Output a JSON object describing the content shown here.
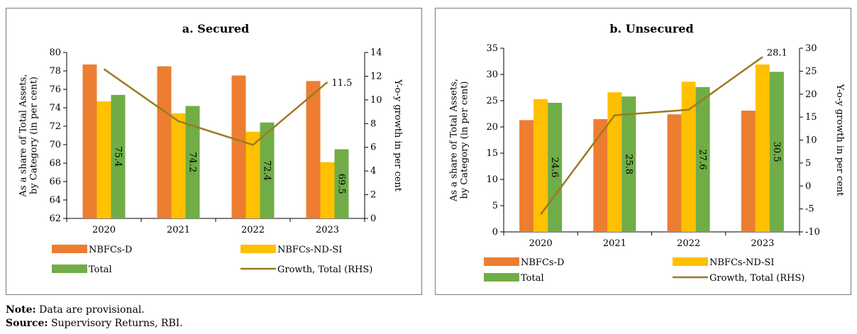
{
  "colors": {
    "nbfc_d": "#ED7D31",
    "nbfc_ndsi": "#FFC000",
    "total": "#70AD47",
    "growth": "#9C7A1F"
  },
  "chart_data": [
    {
      "type": "bar",
      "title": "a. Secured",
      "categories": [
        "2020",
        "2021",
        "2022",
        "2023"
      ],
      "ylabel": "As a share of Total Assets, by Category (in per cent)",
      "y2label": "Y-o-y growth in per cent",
      "ylim": [
        62,
        80
      ],
      "yticks": [
        62,
        64,
        66,
        68,
        70,
        72,
        74,
        76,
        78,
        80
      ],
      "y2lim": [
        0,
        14
      ],
      "y2ticks": [
        0,
        2,
        4,
        6,
        8,
        10,
        12,
        14
      ],
      "series": [
        {
          "name": "NBFCs-D",
          "values": [
            78.7,
            78.5,
            77.5,
            76.9
          ]
        },
        {
          "name": "NBFCs-ND-SI",
          "values": [
            74.7,
            73.4,
            71.4,
            68.1
          ]
        },
        {
          "name": "Total",
          "values": [
            75.4,
            74.2,
            72.4,
            69.5
          ],
          "data_labels": [
            "75.4",
            "74.2",
            "72.4",
            "69.5"
          ]
        }
      ],
      "line_series": {
        "name": "Growth, Total (RHS)",
        "axis": "right",
        "values": [
          12.6,
          8.2,
          6.2,
          11.5
        ],
        "end_label": "11.5"
      },
      "legend": [
        "NBFCs-D",
        "NBFCs-ND-SI",
        "Total",
        "Growth, Total (RHS)"
      ],
      "legend_placement": "bottom",
      "grid": false
    },
    {
      "type": "bar",
      "title": "b. Unsecured",
      "categories": [
        "2020",
        "2021",
        "2022",
        "2023"
      ],
      "ylabel": "As a share of Total Assets, by Category (in per cent)",
      "y2label": "Y-o-y growth in per cent",
      "ylim": [
        0,
        35
      ],
      "yticks": [
        0,
        5,
        10,
        15,
        20,
        25,
        30,
        35
      ],
      "y2lim": [
        -10,
        30
      ],
      "y2ticks": [
        -10,
        -5,
        0,
        5,
        10,
        15,
        20,
        25,
        30
      ],
      "series": [
        {
          "name": "NBFCs-D",
          "values": [
            21.3,
            21.5,
            22.4,
            23.1
          ]
        },
        {
          "name": "NBFCs-ND-SI",
          "values": [
            25.3,
            26.6,
            28.6,
            31.9
          ]
        },
        {
          "name": "Total",
          "values": [
            24.6,
            25.8,
            27.6,
            30.5
          ],
          "data_labels": [
            "24.6",
            "25.8",
            "27.6",
            "30.5"
          ]
        }
      ],
      "line_series": {
        "name": "Growth, Total (RHS)",
        "axis": "right",
        "values": [
          -6.2,
          15.4,
          16.6,
          28.1
        ],
        "end_label": "28.1"
      },
      "legend": [
        "NBFCs-D",
        "NBFCs-ND-SI",
        "Total",
        "Growth, Total (RHS)"
      ],
      "legend_placement": "bottom",
      "grid": false
    }
  ],
  "notes": {
    "note_label": "Note:",
    "note_text": " Data are provisional.",
    "source_label": "Source:",
    "source_text": " Supervisory Returns, RBI."
  }
}
